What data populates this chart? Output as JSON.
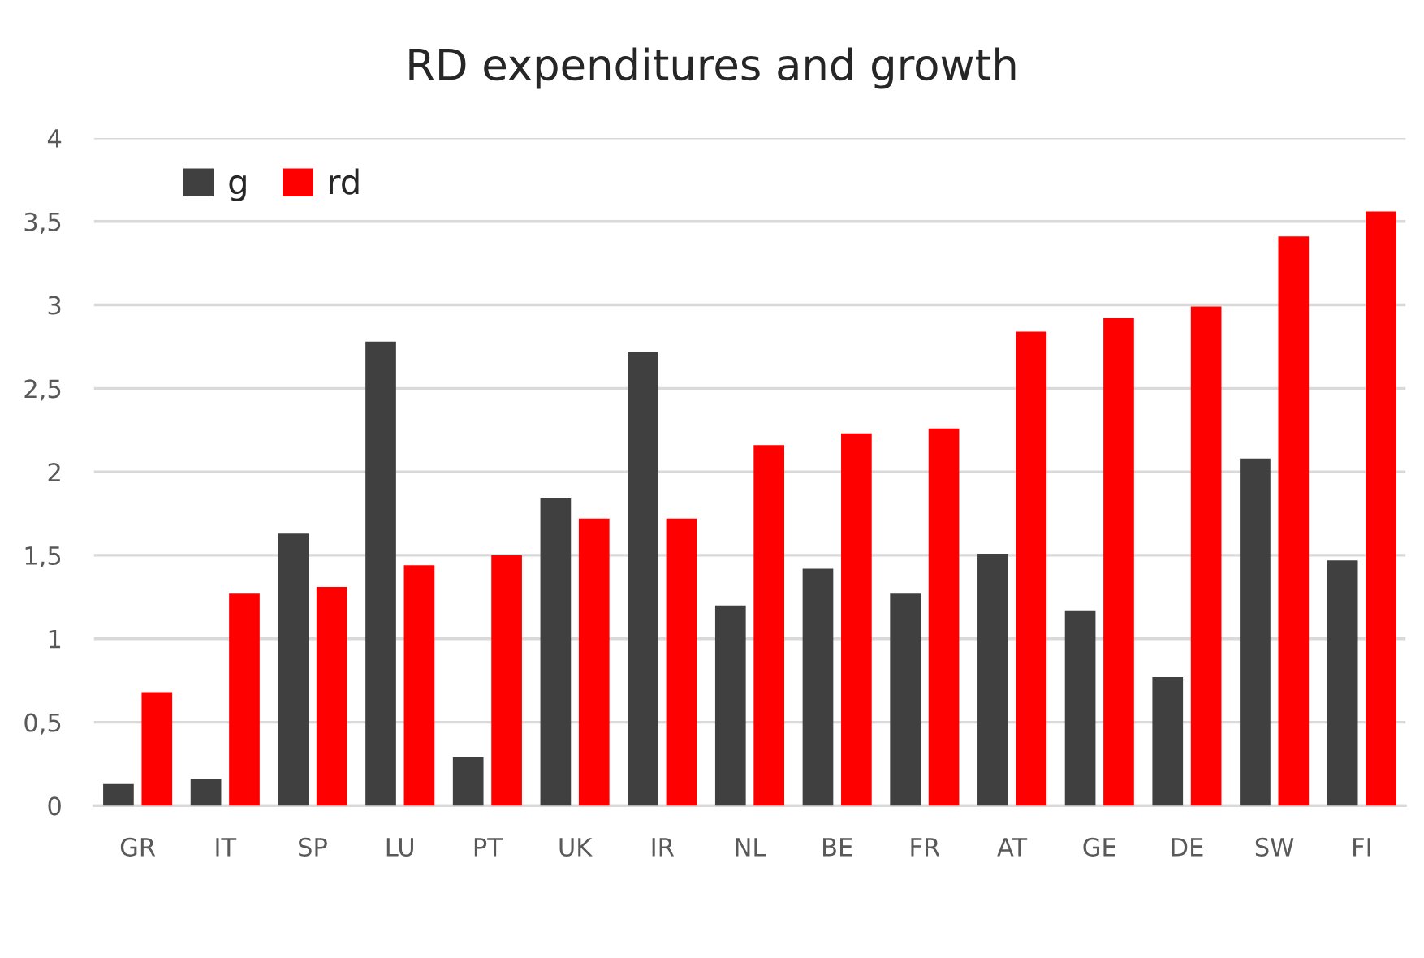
{
  "chart_data": {
    "type": "bar",
    "title": "RD expenditures and growth",
    "categories": [
      "GR",
      "IT",
      "SP",
      "LU",
      "PT",
      "UK",
      "IR",
      "NL",
      "BE",
      "FR",
      "AT",
      "GE",
      "DE",
      "SW",
      "FI"
    ],
    "series": [
      {
        "name": "g",
        "color": "#404040",
        "values": [
          0.13,
          0.16,
          1.63,
          2.78,
          0.29,
          1.84,
          2.72,
          1.2,
          1.42,
          1.27,
          1.51,
          1.17,
          0.77,
          2.08,
          1.47
        ]
      },
      {
        "name": "rd",
        "color": "#ff0000",
        "values": [
          0.68,
          1.27,
          1.31,
          1.44,
          1.5,
          1.72,
          1.72,
          2.16,
          2.23,
          2.26,
          2.84,
          2.92,
          2.99,
          3.41,
          3.56
        ]
      }
    ],
    "ylim": [
      0,
      4
    ],
    "yticks": [
      0,
      {
        "value": 0.5,
        "label": "0,5"
      },
      1,
      {
        "value": 1.5,
        "label": "1,5"
      },
      2,
      {
        "value": 2.5,
        "label": "2,5"
      },
      3,
      {
        "value": 3.5,
        "label": "3,5"
      },
      4
    ],
    "grid": "y",
    "legend": "top left"
  }
}
